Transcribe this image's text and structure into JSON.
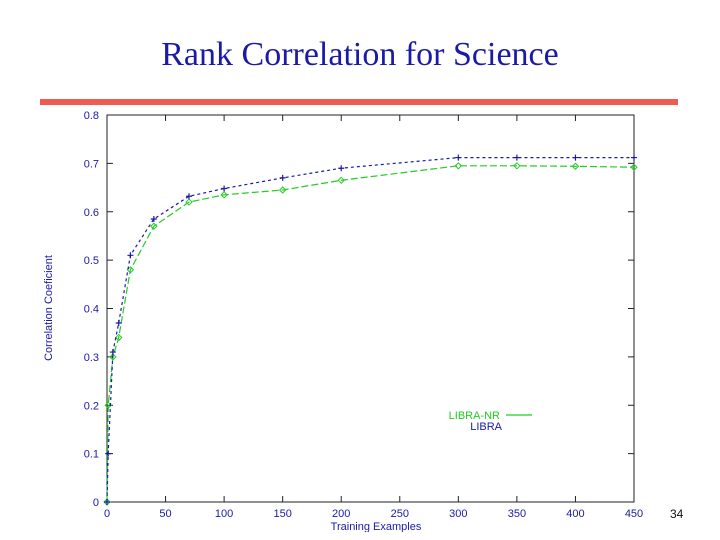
{
  "slide": {
    "title": "Rank Correlation for Science",
    "page_number": "34",
    "accent_color": "#f05a50",
    "title_color": "#1a1aa6"
  },
  "chart_data": {
    "type": "line",
    "title": "",
    "xlabel": "Training Examples",
    "ylabel": "Correlation Coeficient",
    "xlim": [
      0,
      450
    ],
    "ylim": [
      0,
      0.8
    ],
    "x_ticks": [
      0,
      50,
      100,
      150,
      200,
      250,
      300,
      350,
      400,
      450
    ],
    "x_tick_labels": [
      "0",
      "50",
      "100",
      "150",
      "200",
      "250",
      "300",
      "350",
      "400",
      "450"
    ],
    "y_ticks": [
      0,
      0.1,
      0.2,
      0.3,
      0.4,
      0.5,
      0.6,
      0.7,
      0.8
    ],
    "y_tick_labels": [
      "0",
      "0.1",
      "0.2",
      "0.3",
      "0.4",
      "0.5",
      "0.6",
      "0.7",
      "0.8"
    ],
    "grid": false,
    "legend_position": "bottom-right",
    "series": [
      {
        "name": "LIBRA-NR",
        "color": "#22cc22",
        "marker": "diamond",
        "x": [
          0,
          1,
          5,
          10,
          20,
          40,
          70,
          100,
          150,
          200,
          300,
          350,
          400,
          450
        ],
        "y": [
          0,
          0.2,
          0.3,
          0.34,
          0.48,
          0.57,
          0.62,
          0.635,
          0.645,
          0.665,
          0.695,
          0.695,
          0.694,
          0.692
        ]
      },
      {
        "name": "LIBRA",
        "color": "#1a1aa6",
        "marker": "plus",
        "x": [
          0,
          1,
          5,
          10,
          20,
          40,
          70,
          100,
          150,
          200,
          300,
          350,
          400,
          450
        ],
        "y": [
          0,
          0.1,
          0.31,
          0.37,
          0.51,
          0.585,
          0.632,
          0.648,
          0.67,
          0.69,
          0.712,
          0.712,
          0.712,
          0.712
        ]
      }
    ]
  }
}
